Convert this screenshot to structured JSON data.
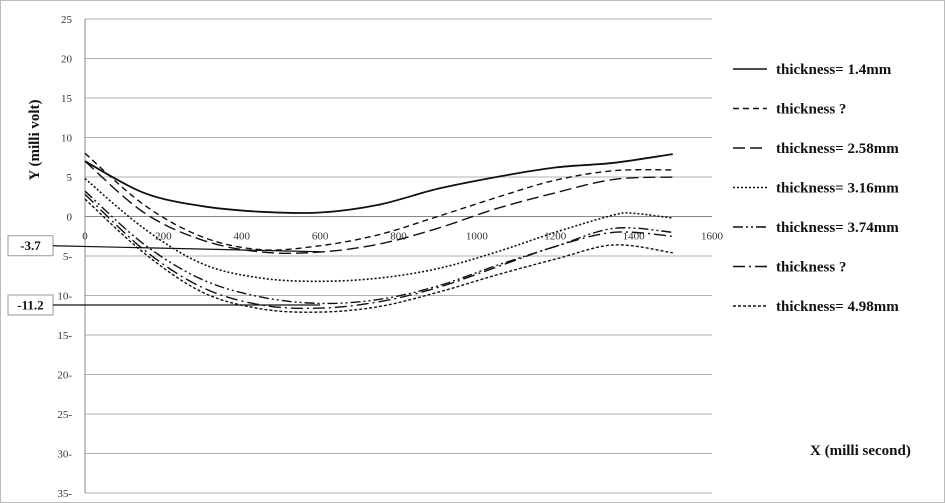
{
  "chart_data": {
    "type": "line",
    "xlabel": "X  (milli second)",
    "ylabel": "Y (milli volt)",
    "xlim": [
      0,
      1600
    ],
    "ylim": [
      -35,
      25
    ],
    "x_ticks": [
      {
        "value": 0,
        "label": "0"
      },
      {
        "value": 200,
        "label": "200"
      },
      {
        "value": 400,
        "label": "400"
      },
      {
        "value": 600,
        "label": "600"
      },
      {
        "value": 800,
        "label": "800"
      },
      {
        "value": 1000,
        "label": "1000"
      },
      {
        "value": 1200,
        "label": "1200"
      },
      {
        "value": 1400,
        "label": "1400"
      },
      {
        "value": 1600,
        "label": "1600"
      }
    ],
    "y_ticks": [
      {
        "value": 25,
        "label": "25"
      },
      {
        "value": 20,
        "label": "20"
      },
      {
        "value": 15,
        "label": "15"
      },
      {
        "value": 10,
        "label": "10"
      },
      {
        "value": 5,
        "label": "5"
      },
      {
        "value": 0,
        "label": "0"
      },
      {
        "value": -5,
        "label": "5-"
      },
      {
        "value": -10,
        "label": "10-"
      },
      {
        "value": -15,
        "label": "15-"
      },
      {
        "value": -20,
        "label": "20-"
      },
      {
        "value": -25,
        "label": "25-"
      },
      {
        "value": -30,
        "label": "30-"
      },
      {
        "value": -35,
        "label": "35-"
      }
    ],
    "grid": "horizontal",
    "legend_position": "right",
    "series": [
      {
        "name": "thickness= 1.4mm",
        "dash": "solid",
        "width": 1.8,
        "x": [
          0,
          150,
          300,
          450,
          600,
          750,
          900,
          1050,
          1200,
          1350,
          1500
        ],
        "y": [
          7.0,
          3.0,
          1.3,
          0.6,
          0.5,
          1.5,
          3.5,
          5.0,
          6.2,
          6.8,
          7.9
        ]
      },
      {
        "name": "thickness  ?",
        "dash": "6,4",
        "width": 1.4,
        "x": [
          0,
          150,
          300,
          450,
          600,
          750,
          900,
          1050,
          1200,
          1350,
          1500
        ],
        "y": [
          8.0,
          1.5,
          -2.6,
          -4.2,
          -3.7,
          -2.3,
          0.0,
          2.4,
          4.6,
          5.8,
          5.9
        ]
      },
      {
        "name": "thickness= 2.58mm",
        "dash": "12,5",
        "width": 1.4,
        "x": [
          0,
          150,
          300,
          450,
          600,
          750,
          900,
          1050,
          1200,
          1350,
          1500
        ],
        "y": [
          7.0,
          0.5,
          -3.0,
          -4.5,
          -4.5,
          -3.5,
          -1.5,
          1.0,
          3.0,
          4.7,
          5.0
        ]
      },
      {
        "name": "thickness= 3.16mm",
        "dash": "2,2",
        "width": 1.6,
        "x": [
          0,
          150,
          300,
          450,
          600,
          750,
          900,
          1050,
          1200,
          1350,
          1400,
          1500
        ],
        "y": [
          4.8,
          -1.5,
          -6.0,
          -7.8,
          -8.2,
          -7.8,
          -6.6,
          -4.5,
          -2.0,
          0.2,
          0.4,
          -0.2
        ]
      },
      {
        "name": "thickness= 3.74mm",
        "dash": "10,3,2,3,2,3",
        "width": 1.4,
        "x": [
          0,
          150,
          300,
          450,
          600,
          750,
          900,
          1050,
          1200,
          1350,
          1500
        ],
        "y": [
          3.2,
          -3.5,
          -8.0,
          -10.2,
          -11.0,
          -10.5,
          -8.8,
          -6.2,
          -3.8,
          -1.5,
          -2.0
        ]
      },
      {
        "name": "thickness  ?",
        "dash": "12,4,2,4",
        "width": 1.4,
        "x": [
          0,
          150,
          300,
          450,
          600,
          750,
          900,
          1050,
          1200,
          1350,
          1500
        ],
        "y": [
          2.8,
          -4.2,
          -9.0,
          -11.2,
          -11.6,
          -10.8,
          -9.0,
          -6.4,
          -3.8,
          -2.0,
          -2.5
        ]
      },
      {
        "name": "thickness= 4.98mm",
        "dash": "3,2",
        "width": 1.4,
        "x": [
          0,
          150,
          300,
          450,
          600,
          750,
          900,
          1050,
          1200,
          1350,
          1500
        ],
        "y": [
          2.2,
          -4.6,
          -9.6,
          -11.7,
          -12.1,
          -11.4,
          -9.6,
          -7.4,
          -5.4,
          -3.6,
          -4.6
        ]
      }
    ],
    "annotations": [
      {
        "label": "-3.7",
        "value": -3.7
      },
      {
        "label": "-11.2",
        "value": -11.2
      }
    ]
  }
}
